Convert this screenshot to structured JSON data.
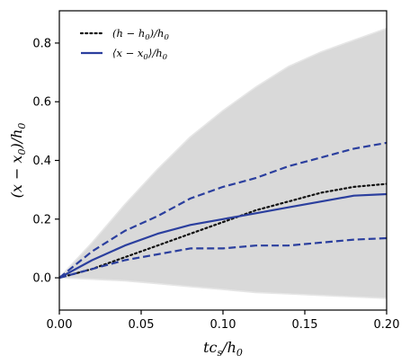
{
  "chart_data": {
    "type": "line",
    "xlabel": "tc_s/h_0",
    "ylabel": "(x − x_0)/h_0",
    "xlim": [
      0.0,
      0.2
    ],
    "ylim": [
      -0.11,
      0.91
    ],
    "x_ticks": [
      "0.00",
      "0.05",
      "0.10",
      "0.15",
      "0.20"
    ],
    "y_ticks": [
      "0.0",
      "0.2",
      "0.4",
      "0.6",
      "0.8"
    ],
    "grid": false,
    "legend_position": "top-left",
    "x": [
      0.0,
      0.02,
      0.04,
      0.06,
      0.08,
      0.1,
      0.12,
      0.14,
      0.16,
      0.18,
      0.2
    ],
    "envelope": {
      "upper": [
        0.0,
        0.12,
        0.25,
        0.37,
        0.48,
        0.57,
        0.65,
        0.72,
        0.77,
        0.81,
        0.85
      ],
      "lower": [
        0.0,
        -0.005,
        -0.01,
        -0.02,
        -0.03,
        -0.04,
        -0.05,
        -0.055,
        -0.06,
        -0.065,
        -0.07
      ],
      "color": "#d9d9d9"
    },
    "series": [
      {
        "name": "(h − h_0)/h_0",
        "style": "dotted",
        "color": "#111111",
        "values": [
          0.0,
          0.03,
          0.07,
          0.11,
          0.15,
          0.19,
          0.23,
          0.26,
          0.29,
          0.31,
          0.32
        ]
      },
      {
        "name": "⟨x − x_0⟩/h_0",
        "style": "solid",
        "color": "#2b3f9e",
        "values": [
          0.0,
          0.06,
          0.11,
          0.15,
          0.18,
          0.2,
          0.22,
          0.24,
          0.26,
          0.28,
          0.285
        ]
      },
      {
        "style": "dashed",
        "color": "#2b3f9e",
        "values": [
          0.0,
          0.09,
          0.16,
          0.21,
          0.27,
          0.31,
          0.34,
          0.38,
          0.41,
          0.44,
          0.46
        ]
      },
      {
        "style": "dashed",
        "color": "#2b3f9e",
        "values": [
          0.0,
          0.03,
          0.06,
          0.08,
          0.1,
          0.1,
          0.11,
          0.11,
          0.12,
          0.13,
          0.135
        ]
      }
    ]
  }
}
